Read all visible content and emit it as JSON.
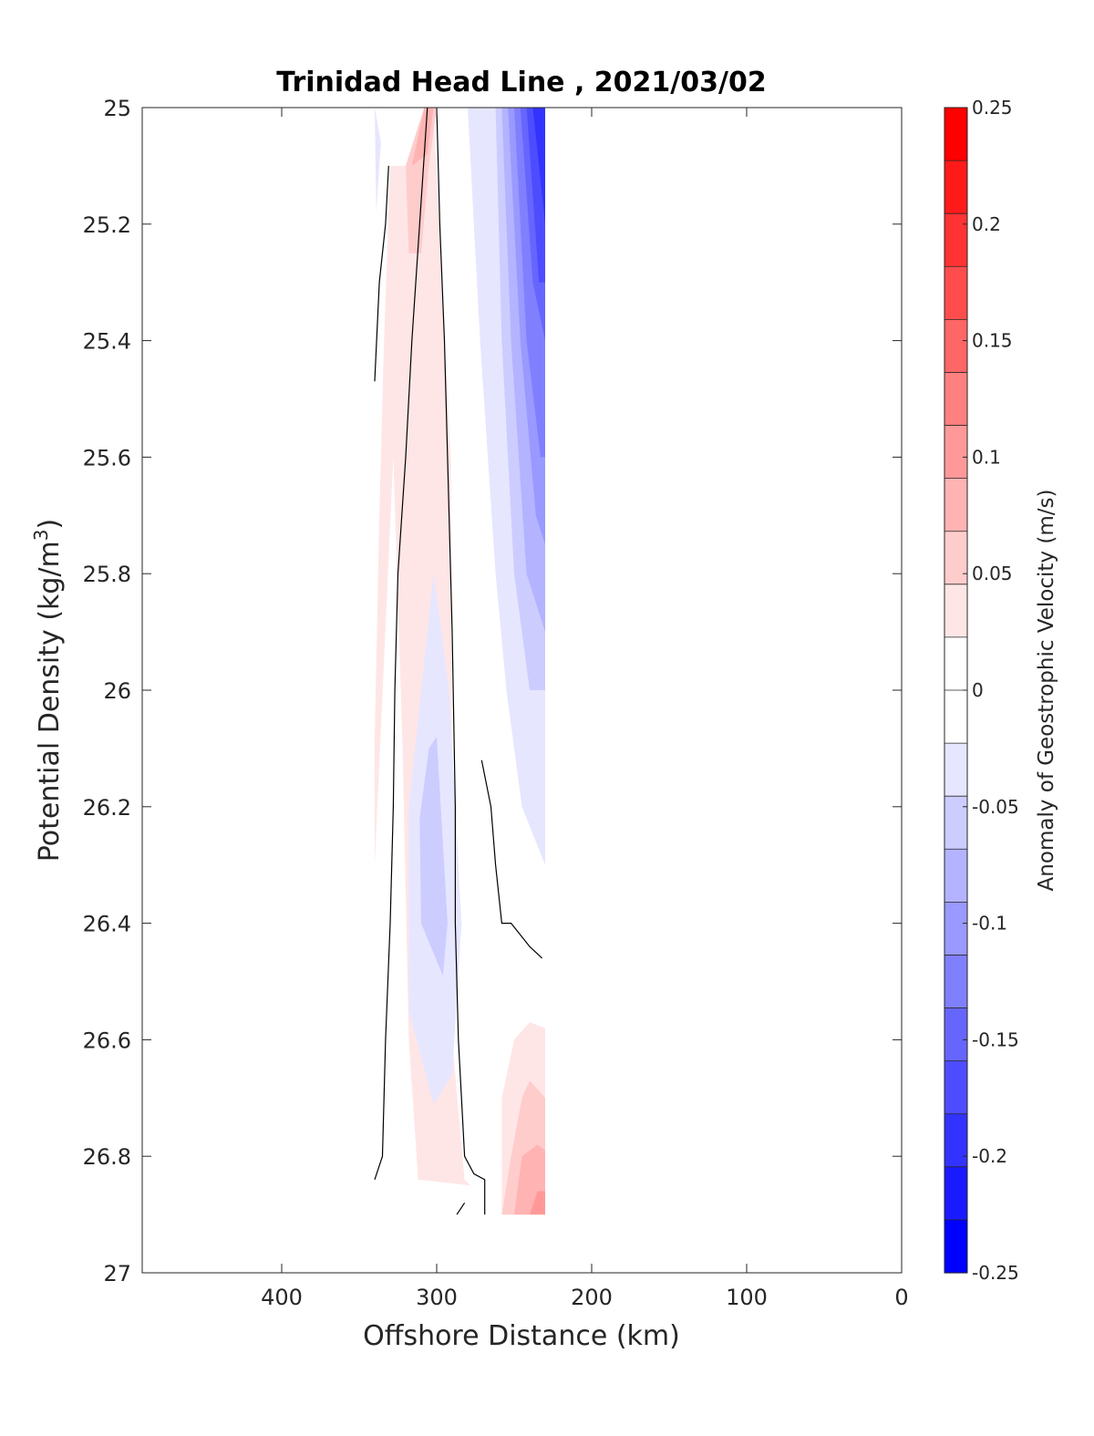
{
  "chart_data": {
    "type": "contourf",
    "title": "Trinidad Head Line , 2021/03/02",
    "xlabel": "Offshore Distance (km)",
    "ylabel": "Potential Density (kg/m",
    "ylabel_sup": "3",
    "ylabel_close": ")",
    "xlim": [
      490,
      0
    ],
    "ylim": [
      25,
      27
    ],
    "x_reversed": true,
    "y_reversed": true,
    "xticks": [
      400,
      300,
      200,
      100,
      0
    ],
    "yticks": [
      25,
      25.2,
      25.4,
      25.6,
      25.8,
      26,
      26.2,
      26.4,
      26.6,
      26.8,
      27
    ],
    "colorbar": {
      "label": "Anomaly of Geostrophic Velocity (m/s)",
      "range": [
        -0.25,
        0.25
      ],
      "levels": [
        0.25,
        0.225,
        0.2,
        0.175,
        0.15,
        0.125,
        0.1,
        0.075,
        0.05,
        0.025,
        0,
        -0.025,
        -0.05,
        -0.075,
        -0.1,
        -0.125,
        -0.15,
        -0.175,
        -0.2,
        -0.225,
        -0.25
      ],
      "colors": [
        "#ff0000",
        "#ff1a1a",
        "#ff3333",
        "#ff4d4d",
        "#ff6666",
        "#ff8080",
        "#ff9999",
        "#ffb3b3",
        "#ffcccc",
        "#ffe6e6",
        "#ffffff",
        "#ffffff",
        "#e6e6ff",
        "#ccccff",
        "#b3b3ff",
        "#9999ff",
        "#8080ff",
        "#6666ff",
        "#4d4dff",
        "#3333ff",
        "#1a1aff",
        "#0000ff"
      ],
      "tick_values": [
        0.25,
        0.2,
        0.15,
        0.1,
        0.05,
        0,
        -0.05,
        -0.1,
        -0.15,
        -0.2,
        -0.25
      ],
      "tick_labels": [
        "0.25",
        "0.2",
        "0.15",
        "0.1",
        "0.05",
        "0",
        "-0.05",
        "-0.1",
        "-0.15",
        "-0.2",
        "-0.25"
      ]
    },
    "regions": [
      {
        "level": 0.05,
        "color": "#ffe6e6",
        "points": [
          [
            340,
            26.08
          ],
          [
            337,
            25.7
          ],
          [
            334,
            25.4
          ],
          [
            330,
            25.1
          ],
          [
            320,
            25.1
          ],
          [
            308,
            25.0
          ],
          [
            302,
            25.0
          ],
          [
            295,
            25.4
          ],
          [
            291,
            25.6
          ],
          [
            290,
            26.2
          ],
          [
            290,
            26.6
          ],
          [
            282,
            26.84
          ],
          [
            278,
            26.85
          ],
          [
            312,
            26.84
          ],
          [
            318,
            26.6
          ],
          [
            322,
            26.1
          ],
          [
            328,
            25.6
          ],
          [
            340,
            26.3
          ],
          [
            340,
            26.56
          ]
        ]
      },
      {
        "level": 0.05,
        "color": "#ffe6e6",
        "points": [
          [
            340,
            25.06
          ],
          [
            340,
            25.3
          ]
        ]
      },
      {
        "level": 0.075,
        "color": "#ffcccc",
        "points": [
          [
            320,
            25.1
          ],
          [
            318,
            25.25
          ],
          [
            310,
            25.25
          ],
          [
            305,
            25.1
          ],
          [
            300,
            25.0
          ],
          [
            308,
            25.0
          ]
        ]
      },
      {
        "level": 0.1,
        "color": "#ffb3b3",
        "points": [
          [
            316,
            25.1
          ],
          [
            306,
            25.08
          ],
          [
            302,
            25.0
          ],
          [
            308,
            25.0
          ]
        ]
      },
      {
        "level": 0.05,
        "color": "#ffe6e6",
        "points": [
          [
            258,
            26.9
          ],
          [
            258,
            26.7
          ],
          [
            250,
            26.6
          ],
          [
            240,
            26.57
          ],
          [
            230,
            26.58
          ],
          [
            230,
            26.9
          ]
        ]
      },
      {
        "level": 0.075,
        "color": "#ffcccc",
        "points": [
          [
            258,
            26.9
          ],
          [
            252,
            26.8
          ],
          [
            245,
            26.7
          ],
          [
            240,
            26.67
          ],
          [
            230,
            26.7
          ],
          [
            230,
            26.9
          ]
        ]
      },
      {
        "level": 0.1,
        "color": "#ffb3b3",
        "points": [
          [
            250,
            26.9
          ],
          [
            245,
            26.8
          ],
          [
            235,
            26.78
          ],
          [
            230,
            26.79
          ],
          [
            230,
            26.9
          ]
        ]
      },
      {
        "level": 0.125,
        "color": "#ff9999",
        "points": [
          [
            240,
            26.9
          ],
          [
            235,
            26.86
          ],
          [
            230,
            26.86
          ],
          [
            230,
            26.9
          ]
        ]
      },
      {
        "level": -0.05,
        "color": "#e6e6ff",
        "points": [
          [
            280,
            25.0
          ],
          [
            272,
            25.4
          ],
          [
            262,
            25.8
          ],
          [
            255,
            26.0
          ],
          [
            245,
            26.2
          ],
          [
            230,
            26.3
          ],
          [
            230,
            25.0
          ]
        ]
      },
      {
        "level": -0.075,
        "color": "#ccccff",
        "points": [
          [
            262,
            25.0
          ],
          [
            258,
            25.4
          ],
          [
            250,
            25.8
          ],
          [
            240,
            26.0
          ],
          [
            230,
            26.0
          ],
          [
            230,
            25.0
          ]
        ]
      },
      {
        "level": -0.1,
        "color": "#b3b3ff",
        "points": [
          [
            258,
            25.0
          ],
          [
            252,
            25.4
          ],
          [
            242,
            25.8
          ],
          [
            230,
            25.9
          ],
          [
            230,
            25.0
          ]
        ]
      },
      {
        "level": -0.125,
        "color": "#9999ff",
        "points": [
          [
            254,
            25.0
          ],
          [
            246,
            25.4
          ],
          [
            236,
            25.7
          ],
          [
            230,
            25.75
          ],
          [
            230,
            25.0
          ]
        ]
      },
      {
        "level": -0.15,
        "color": "#8080ff",
        "points": [
          [
            250,
            25.0
          ],
          [
            242,
            25.4
          ],
          [
            233,
            25.6
          ],
          [
            230,
            25.6
          ],
          [
            230,
            25.0
          ]
        ]
      },
      {
        "level": -0.175,
        "color": "#6666ff",
        "points": [
          [
            246,
            25.0
          ],
          [
            238,
            25.3
          ],
          [
            230,
            25.4
          ],
          [
            230,
            25.0
          ]
        ]
      },
      {
        "level": -0.2,
        "color": "#4d4dff",
        "points": [
          [
            242,
            25.0
          ],
          [
            234,
            25.3
          ],
          [
            230,
            25.3
          ],
          [
            230,
            25.0
          ]
        ]
      },
      {
        "level": -0.225,
        "color": "#3333ff",
        "points": [
          [
            238,
            25.0
          ],
          [
            230,
            25.2
          ],
          [
            230,
            25.0
          ]
        ]
      },
      {
        "level": -0.05,
        "color": "#e6e6ff",
        "points": [
          [
            302,
            25.8
          ],
          [
            292,
            26.0
          ],
          [
            284,
            26.4
          ],
          [
            290,
            26.66
          ],
          [
            302,
            26.71
          ],
          [
            318,
            26.55
          ],
          [
            318,
            26.2
          ],
          [
            308,
            25.95
          ]
        ]
      },
      {
        "level": -0.075,
        "color": "#ccccff",
        "points": [
          [
            300,
            26.08
          ],
          [
            293,
            26.4
          ],
          [
            296,
            26.49
          ],
          [
            310,
            26.4
          ],
          [
            311,
            26.22
          ],
          [
            305,
            26.1
          ]
        ]
      },
      {
        "level": -0.05,
        "color": "#e6e6ff",
        "points": [
          [
            340,
            25.0
          ],
          [
            339,
            25.18
          ],
          [
            336,
            25.06
          ]
        ]
      }
    ],
    "zero_contours": [
      [
        [
          340,
          25.47
        ],
        [
          337,
          25.3
        ],
        [
          333,
          25.2
        ],
        [
          331,
          25.1
        ]
      ],
      [
        [
          300,
          25.0
        ],
        [
          298,
          25.2
        ],
        [
          295,
          25.4
        ],
        [
          293,
          25.6
        ],
        [
          290,
          25.9
        ],
        [
          288,
          26.2
        ],
        [
          288,
          26.4
        ],
        [
          286,
          26.6
        ],
        [
          282,
          26.8
        ],
        [
          276,
          26.83
        ],
        [
          269,
          26.84
        ],
        [
          269,
          26.9
        ]
      ],
      [
        [
          340,
          26.84
        ],
        [
          335,
          26.8
        ],
        [
          333,
          26.6
        ],
        [
          330,
          26.4
        ],
        [
          328,
          26.2
        ],
        [
          327,
          26.0
        ],
        [
          325,
          25.8
        ],
        [
          320,
          25.6
        ],
        [
          316,
          25.4
        ],
        [
          311,
          25.2
        ],
        [
          306,
          25.0
        ]
      ],
      [
        [
          271,
          26.12
        ],
        [
          265,
          26.2
        ],
        [
          262,
          26.3
        ],
        [
          258,
          26.4
        ],
        [
          252,
          26.4
        ],
        [
          246,
          26.42
        ],
        [
          240,
          26.44
        ],
        [
          232,
          26.46
        ]
      ],
      [
        [
          287,
          26.9
        ],
        [
          282,
          26.88
        ]
      ]
    ]
  }
}
